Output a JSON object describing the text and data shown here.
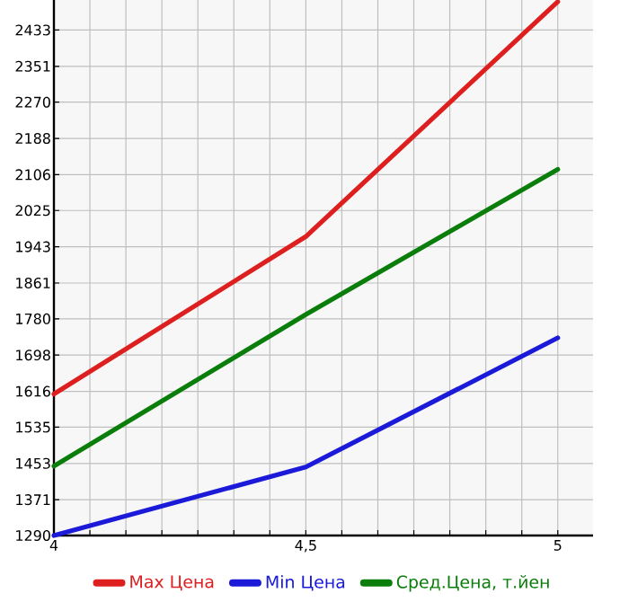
{
  "chart_data": {
    "type": "line",
    "x": [
      4,
      4.5,
      5
    ],
    "series": [
      {
        "name": "Max Цена",
        "color": "#dd1f1f",
        "values": [
          1610,
          1966,
          2497
        ]
      },
      {
        "name": "Min Цена",
        "color": "#1a1ad8",
        "values": [
          1290,
          1445,
          1737
        ]
      },
      {
        "name": "Сред.Цена, т.йен",
        "color": "#0a7d0a",
        "values": [
          1447,
          1790,
          2118
        ]
      }
    ],
    "xlim": [
      4,
      5.07
    ],
    "xticks": [
      4,
      {
        "value": 4.5,
        "label": "4,5"
      },
      5
    ],
    "ylim": [
      1290,
      2501
    ],
    "yticks": [
      1290,
      1371,
      1453,
      1535,
      1616,
      1698,
      1780,
      1861,
      1943,
      2025,
      2106,
      2188,
      2270,
      2351,
      2433
    ],
    "grid": true,
    "legend": "bottom",
    "marker": "none",
    "line_style": "solid"
  }
}
